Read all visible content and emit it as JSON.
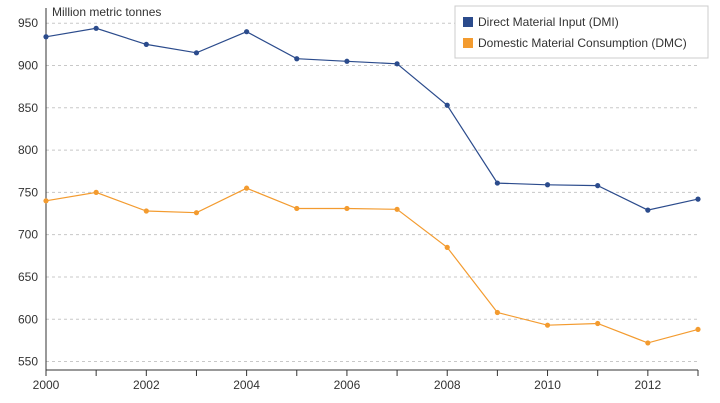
{
  "chart_data": {
    "type": "line",
    "title": "",
    "ylabel": "Million metric tonnes",
    "xlabel": "",
    "x": [
      2000,
      2001,
      2002,
      2003,
      2004,
      2005,
      2006,
      2007,
      2008,
      2009,
      2010,
      2011,
      2012,
      2013
    ],
    "xticks": [
      "2000",
      "2002",
      "2004",
      "2006",
      "2008",
      "2010",
      "2012"
    ],
    "yticks": [
      "550",
      "600",
      "650",
      "700",
      "750",
      "800",
      "850",
      "900",
      "950"
    ],
    "xlim": [
      2000,
      2013
    ],
    "ylim": [
      540,
      968
    ],
    "grid": true,
    "legend_position": "top-right",
    "series": [
      {
        "name": "Direct Material Input (DMI)",
        "color": "#2b4b8c",
        "values": [
          934,
          944,
          925,
          915,
          940,
          908,
          905,
          902,
          853,
          761,
          759,
          758,
          729,
          742
        ]
      },
      {
        "name": "Domestic Material Consumption (DMC)",
        "color": "#f39b2f",
        "values": [
          740,
          750,
          728,
          726,
          755,
          731,
          731,
          730,
          685,
          608,
          593,
          595,
          572,
          588
        ]
      }
    ]
  }
}
